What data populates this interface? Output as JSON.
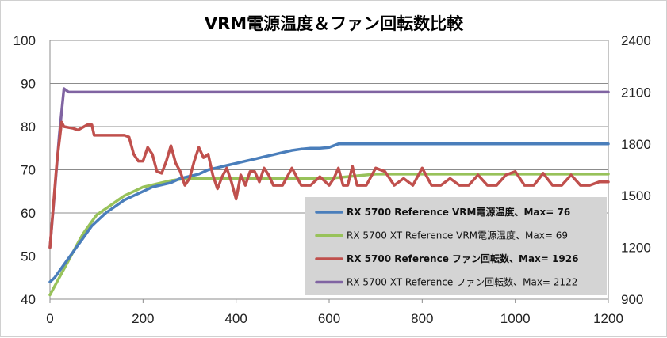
{
  "chart_data": {
    "type": "line",
    "title": "VRM電源温度＆ファン回転数比較",
    "xlabel": "",
    "ylabel_left": "",
    "ylabel_right": "",
    "xlim": [
      0,
      1200
    ],
    "ylim_left": [
      40,
      100
    ],
    "ylim_right": [
      900,
      2400
    ],
    "x_ticks": [
      "0",
      "200",
      "400",
      "600",
      "800",
      "1000",
      "1200"
    ],
    "y_left_ticks": [
      "40",
      "50",
      "60",
      "70",
      "80",
      "90",
      "100"
    ],
    "y_right_ticks": [
      "900",
      "1200",
      "1500",
      "1800",
      "2100",
      "2400"
    ],
    "grid": true,
    "legend_position": "bottom-right",
    "series": [
      {
        "name": "RX 5700 Reference VRM電源温度、Max= 76",
        "axis": "left",
        "color": "#4a7ebb",
        "bold_label": true,
        "x": [
          0,
          10,
          20,
          30,
          40,
          50,
          60,
          70,
          80,
          90,
          100,
          120,
          140,
          160,
          180,
          200,
          220,
          240,
          260,
          280,
          300,
          320,
          340,
          360,
          380,
          400,
          420,
          440,
          460,
          480,
          500,
          520,
          540,
          560,
          580,
          600,
          620,
          700,
          800,
          900,
          1000,
          1100,
          1200
        ],
        "y": [
          44,
          45,
          46.5,
          48,
          49.5,
          51,
          52.5,
          54,
          55.5,
          57,
          58,
          60,
          61.5,
          63,
          64,
          65,
          66,
          66.5,
          67,
          68,
          68.5,
          69,
          70,
          70.5,
          71,
          71.5,
          72,
          72.5,
          73,
          73.5,
          74,
          74.5,
          74.8,
          75,
          75,
          75.2,
          76,
          76,
          76,
          76,
          76,
          76,
          76
        ]
      },
      {
        "name": "RX 5700 XT Reference VRM電源温度、Max= 69",
        "axis": "left",
        "color": "#98c25a",
        "bold_label": false,
        "x": [
          0,
          10,
          20,
          30,
          40,
          50,
          60,
          70,
          80,
          90,
          100,
          120,
          140,
          160,
          180,
          200,
          220,
          240,
          260,
          280,
          300,
          320,
          340,
          360,
          380,
          400,
          450,
          500,
          600,
          700,
          800,
          900,
          1000,
          1100,
          1200
        ],
        "y": [
          41,
          43,
          45,
          47,
          49,
          51,
          53,
          55,
          56.5,
          58,
          59.5,
          61,
          62.5,
          64,
          65,
          66,
          66.5,
          67,
          67.5,
          67.8,
          68,
          68,
          68,
          68,
          68,
          68,
          68,
          68,
          68,
          69,
          69,
          69,
          69,
          69,
          69
        ]
      },
      {
        "name": "RX 5700 Reference ファン回転数、Max= 1926",
        "axis": "right",
        "color": "#c0504d",
        "bold_label": true,
        "x": [
          0,
          15,
          25,
          30,
          50,
          60,
          80,
          90,
          95,
          100,
          120,
          140,
          160,
          170,
          180,
          190,
          200,
          210,
          220,
          230,
          240,
          250,
          260,
          270,
          280,
          290,
          300,
          310,
          320,
          330,
          340,
          350,
          360,
          370,
          380,
          390,
          400,
          410,
          420,
          430,
          440,
          450,
          460,
          470,
          480,
          500,
          520,
          540,
          560,
          580,
          600,
          610,
          620,
          630,
          640,
          650,
          660,
          680,
          700,
          720,
          740,
          760,
          780,
          800,
          820,
          840,
          860,
          880,
          900,
          920,
          940,
          960,
          980,
          1000,
          1020,
          1040,
          1060,
          1080,
          1100,
          1120,
          1140,
          1160,
          1180,
          1200
        ],
        "y": [
          1200,
          1700,
          1926,
          1900,
          1890,
          1880,
          1910,
          1910,
          1850,
          1850,
          1850,
          1850,
          1850,
          1840,
          1740,
          1700,
          1700,
          1780,
          1740,
          1640,
          1630,
          1700,
          1790,
          1690,
          1640,
          1560,
          1600,
          1700,
          1780,
          1720,
          1740,
          1620,
          1540,
          1610,
          1660,
          1580,
          1480,
          1620,
          1560,
          1640,
          1640,
          1580,
          1660,
          1620,
          1560,
          1560,
          1660,
          1560,
          1560,
          1610,
          1560,
          1600,
          1660,
          1560,
          1560,
          1670,
          1560,
          1560,
          1660,
          1640,
          1560,
          1600,
          1560,
          1660,
          1560,
          1560,
          1600,
          1560,
          1560,
          1620,
          1560,
          1560,
          1620,
          1640,
          1560,
          1560,
          1630,
          1560,
          1560,
          1620,
          1560,
          1560,
          1580,
          1580
        ]
      },
      {
        "name": "RX 5700 XT Reference ファン回転数、Max= 2122",
        "axis": "right",
        "color": "#8064a2",
        "bold_label": false,
        "x": [
          0,
          10,
          20,
          30,
          40,
          100,
          200,
          300,
          400,
          500,
          600,
          700,
          800,
          900,
          1000,
          1100,
          1200
        ],
        "y": [
          1200,
          1520,
          1850,
          2120,
          2100,
          2100,
          2100,
          2100,
          2100,
          2100,
          2100,
          2100,
          2100,
          2100,
          2100,
          2100,
          2100
        ]
      }
    ]
  }
}
